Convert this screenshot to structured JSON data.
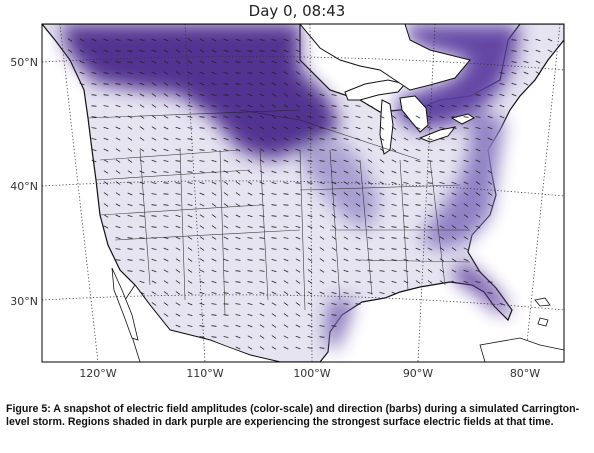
{
  "title": "Day 0, 08:43",
  "lat_labels": [
    "50°N",
    "40°N",
    "30°N"
  ],
  "lon_labels": [
    "120°W",
    "110°W",
    "100°W",
    "90°W",
    "80°W"
  ],
  "colors": {
    "strong_field": "#3a1a78",
    "medium_field": "#7a6ab4",
    "weak_field": "#e6e4f1",
    "water": "#ffffff",
    "coast": "#111111",
    "barb": "#222222"
  },
  "caption": "Figure 5: A snapshot of electric field amplitudes (color-scale) and direction (barbs) during a simulated Carrington-level storm. Regions shaded in dark purple are experiencing the strongest surface electric fields at that time."
}
